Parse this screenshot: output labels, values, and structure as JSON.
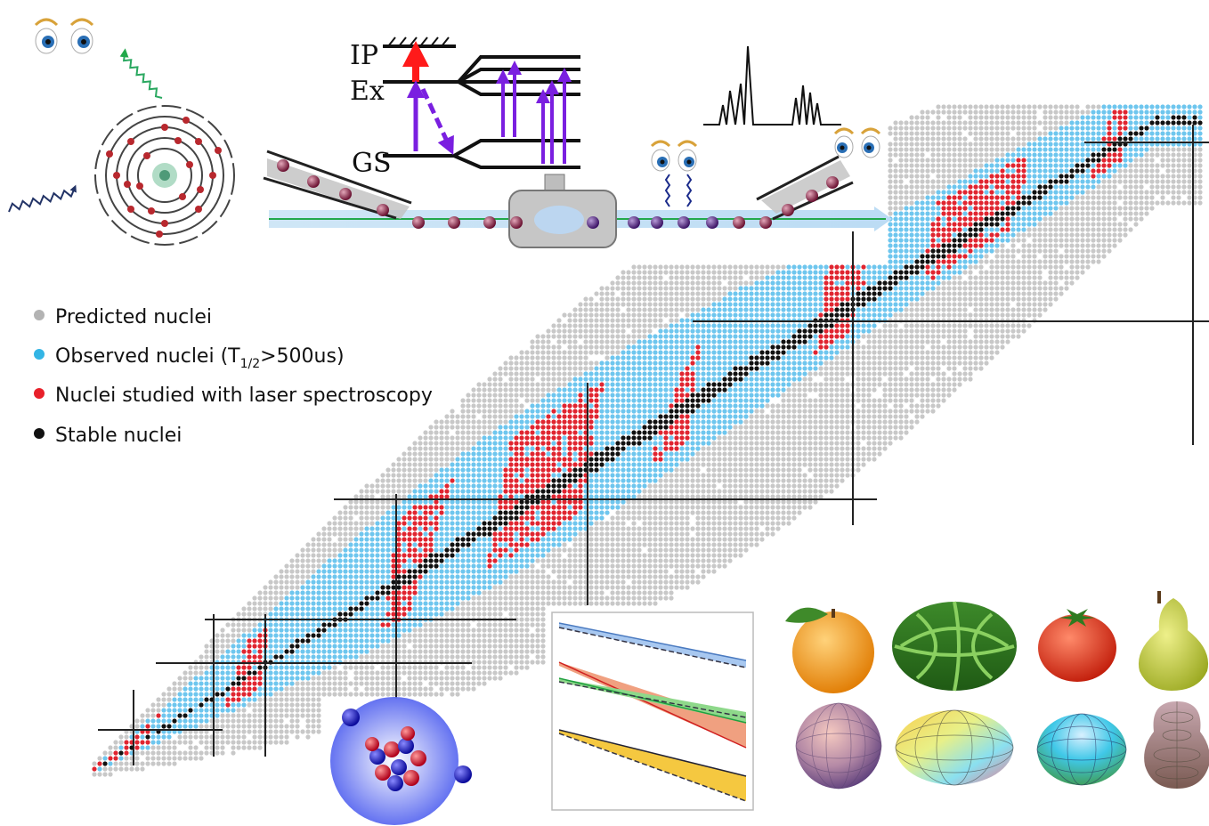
{
  "levels": {
    "ip": "IP",
    "ex": "Ex",
    "gs": "GS"
  },
  "legend": {
    "items": [
      {
        "key": "predicted",
        "label": "Predicted nuclei",
        "color": "#b3b3b3"
      },
      {
        "key": "observed",
        "label_pre": "Observed nuclei (T",
        "label_sub": "1/2",
        "label_post": ">500us)",
        "color": "#33b5e5"
      },
      {
        "key": "laser",
        "label": "Nuclei studied with laser spectroscopy",
        "color": "#e8202a"
      },
      {
        "key": "stable",
        "label": "Stable nuclei",
        "color": "#111111"
      }
    ]
  },
  "colors": {
    "predicted": "#c8c8c8",
    "observed": "#6ec6ee",
    "laser": "#e02530",
    "stable": "#111111",
    "laser_arrow": "#7a1fe0",
    "ion_arrow": "#ff1a1a",
    "beam": "#22a84a",
    "bunch": "#8c2a4a"
  },
  "icons": {
    "atom": "atom-shell-icon",
    "eyes": "eyes-icon",
    "nucleus": "nucleus-icon",
    "fruit_shapes": [
      "orange-icon",
      "watermelon-icon",
      "tomato-icon",
      "pear-icon"
    ],
    "deformed_shapes": [
      "sphere-shape-icon",
      "oblate-shape-icon",
      "prolate-shape-icon",
      "pear-shape-icon"
    ]
  }
}
